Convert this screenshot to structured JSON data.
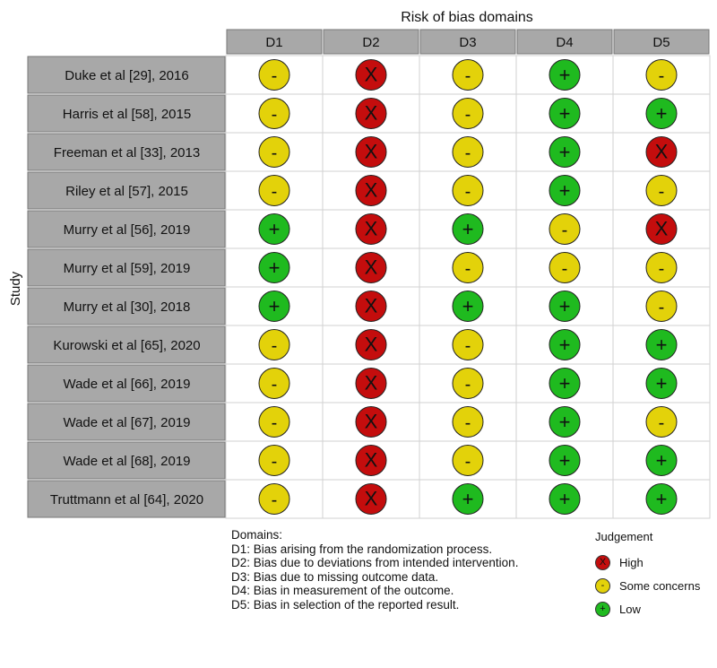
{
  "chart_data": {
    "type": "table",
    "title": "Risk of bias domains",
    "ylabel": "Study",
    "domains": [
      "D1",
      "D2",
      "D3",
      "D4",
      "D5"
    ],
    "studies": [
      {
        "name": "Duke et al [29], 2016",
        "judgements": [
          "some",
          "high",
          "some",
          "low",
          "some"
        ]
      },
      {
        "name": "Harris et al [58], 2015",
        "judgements": [
          "some",
          "high",
          "some",
          "low",
          "low"
        ]
      },
      {
        "name": "Freeman et al [33], 2013",
        "judgements": [
          "some",
          "high",
          "some",
          "low",
          "high"
        ]
      },
      {
        "name": "Riley et al [57], 2015",
        "judgements": [
          "some",
          "high",
          "some",
          "low",
          "some"
        ]
      },
      {
        "name": "Murry et al [56], 2019",
        "judgements": [
          "low",
          "high",
          "low",
          "some",
          "high"
        ]
      },
      {
        "name": "Murry et al [59], 2019",
        "judgements": [
          "low",
          "high",
          "some",
          "some",
          "some"
        ]
      },
      {
        "name": "Murry et al [30], 2018",
        "judgements": [
          "low",
          "high",
          "low",
          "low",
          "some"
        ]
      },
      {
        "name": "Kurowski et al [65], 2020",
        "judgements": [
          "some",
          "high",
          "some",
          "low",
          "low"
        ]
      },
      {
        "name": "Wade et al [66], 2019",
        "judgements": [
          "some",
          "high",
          "some",
          "low",
          "low"
        ]
      },
      {
        "name": "Wade et al [67], 2019",
        "judgements": [
          "some",
          "high",
          "some",
          "low",
          "some"
        ]
      },
      {
        "name": "Wade et al [68], 2019",
        "judgements": [
          "some",
          "high",
          "some",
          "low",
          "low"
        ]
      },
      {
        "name": "Truttmann et al [64], 2020",
        "judgements": [
          "some",
          "high",
          "low",
          "low",
          "low"
        ]
      }
    ],
    "judgement_styles": {
      "high": {
        "symbol": "X",
        "color": "#c40d0d"
      },
      "some": {
        "symbol": "-",
        "color": "#e3d20a"
      },
      "low": {
        "symbol": "+",
        "color": "#1fba1f"
      }
    }
  },
  "legend": {
    "domains_title": "Domains:",
    "items": [
      "D1: Bias arising from the randomization process.",
      "D2: Bias due to deviations from intended intervention.",
      "D3: Bias due to missing outcome data.",
      "D4: Bias in measurement of the outcome.",
      "D5: Bias in selection of the reported result."
    ],
    "judgement_title": "Judgement",
    "judgements": [
      {
        "key": "high",
        "label": "High"
      },
      {
        "key": "some",
        "label": "Some concerns"
      },
      {
        "key": "low",
        "label": "Low"
      }
    ]
  },
  "colors": {
    "header_fill": "#a8a8a8",
    "study_fill": "#a8a8a8",
    "cell_border": "#d2d2d2"
  }
}
